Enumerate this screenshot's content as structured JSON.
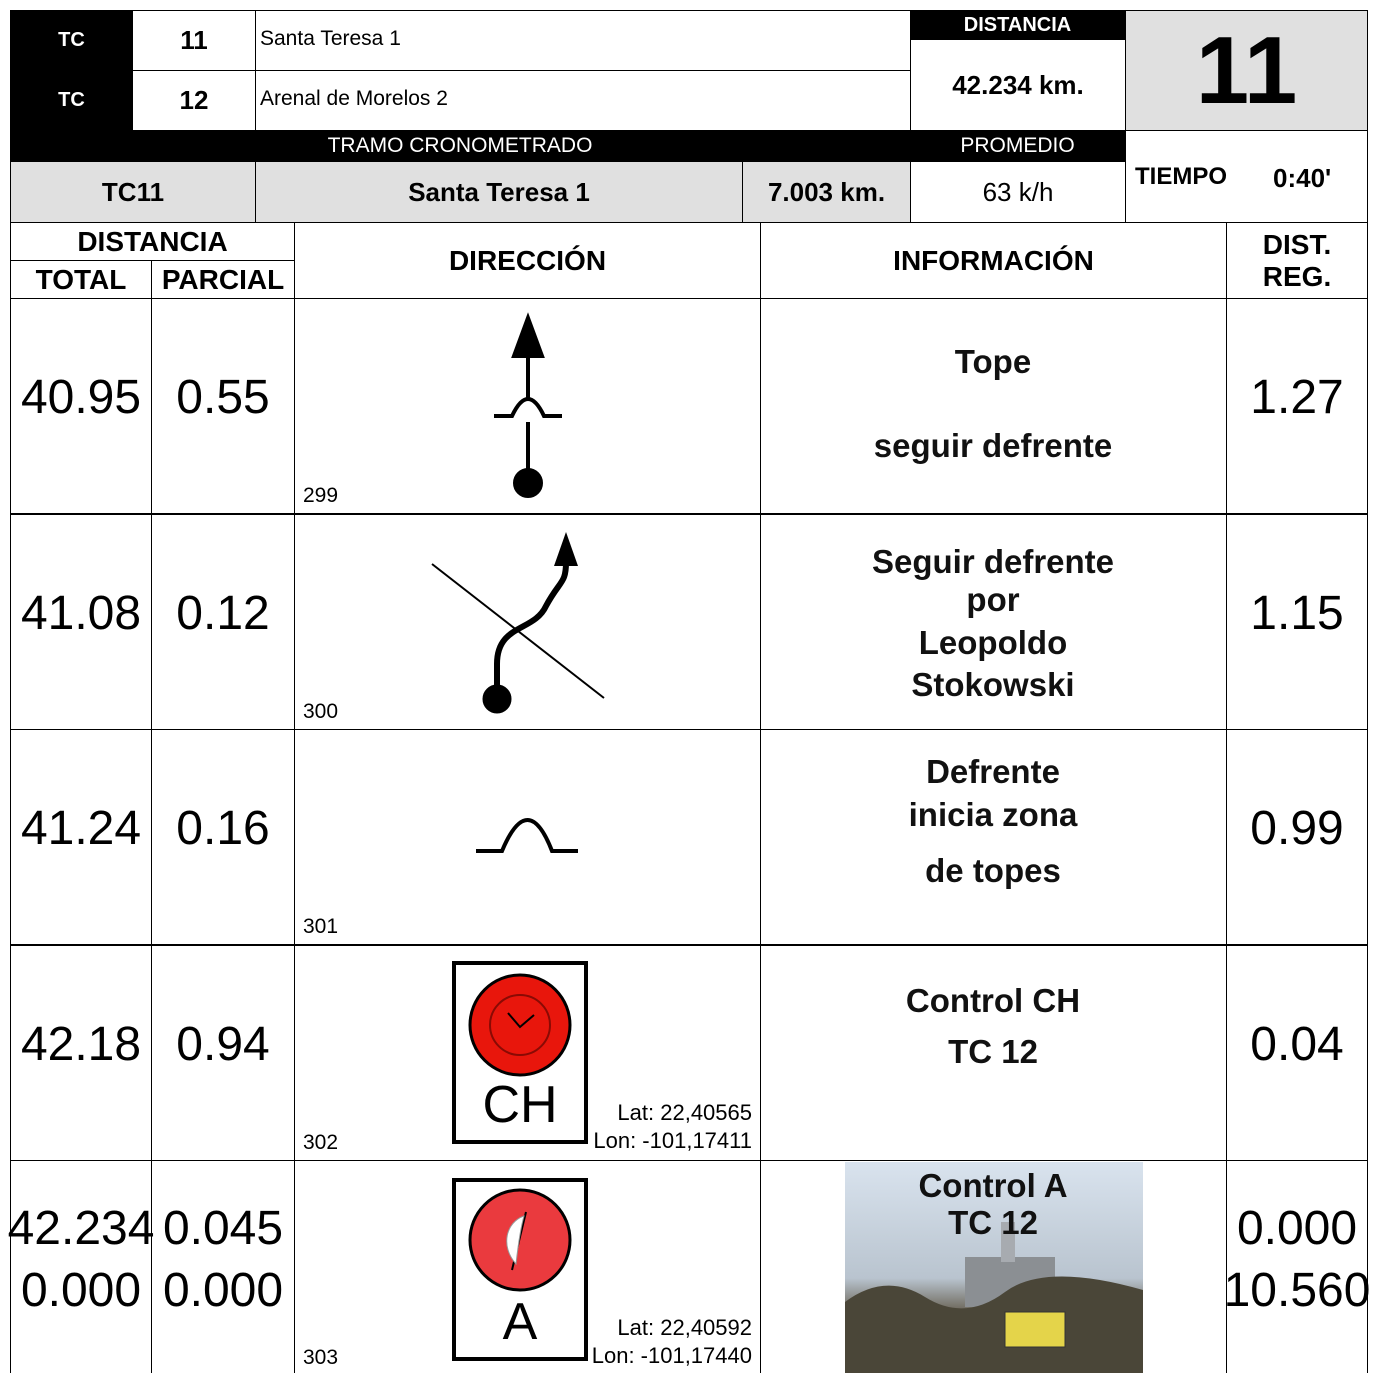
{
  "header": {
    "rows": [
      {
        "label": "TC",
        "number": "11",
        "name": "Santa Teresa 1"
      },
      {
        "label": "TC",
        "number": "12",
        "name": "Arenal de Morelos 2"
      }
    ],
    "distancia_label": "DISTANCIA",
    "distancia": "42.234 km.",
    "page_number": "11",
    "tramo_label": "TRAMO CRONOMETRADO",
    "promedio_label": "PROMEDIO",
    "tc": "TC11",
    "tramo_name": "Santa Teresa 1",
    "tramo_distance": "7.003 km.",
    "promedio": "63 k/h",
    "tiempo_label": "TIEMPO",
    "tiempo": "0:40'"
  },
  "columns": {
    "distancia": "DISTANCIA",
    "total": "TOTAL",
    "parcial": "PARCIAL",
    "direccion": "DIRECCIÓN",
    "informacion": "INFORMACIÓN",
    "dist_reg": "DIST. REG."
  },
  "rows": [
    {
      "total": [
        "40.95"
      ],
      "parcial": [
        "0.55"
      ],
      "number": "299",
      "info": [
        "Tope",
        "seguir defrente"
      ],
      "dist_reg": [
        "1.27"
      ]
    },
    {
      "total": [
        "41.08"
      ],
      "parcial": [
        "0.12"
      ],
      "number": "300",
      "info": [
        "Seguir defrente",
        "por",
        "Leopoldo",
        "Stokowski"
      ],
      "dist_reg": [
        "1.15"
      ]
    },
    {
      "total": [
        "41.24"
      ],
      "parcial": [
        "0.16"
      ],
      "number": "301",
      "info": [
        "Defrente",
        "inicia zona",
        "de topes"
      ],
      "dist_reg": [
        "0.99"
      ]
    },
    {
      "total": [
        "42.18"
      ],
      "parcial": [
        "0.94"
      ],
      "number": "302",
      "icon_text": "CH",
      "lat": "Lat: 22,40565",
      "lon": "Lon: -101,17411",
      "info": [
        "Control CH",
        "TC 12"
      ],
      "dist_reg": [
        "0.04"
      ]
    },
    {
      "total": [
        "42.234",
        "0.000"
      ],
      "parcial": [
        "0.045",
        "0.000"
      ],
      "number": "303",
      "icon_text": "A",
      "lat": "Lat: 22,40592",
      "lon": "Lon: -101,17440",
      "info": [
        "Control A",
        "TC 12"
      ],
      "dist_reg": [
        "0.000",
        "10.560"
      ]
    }
  ]
}
